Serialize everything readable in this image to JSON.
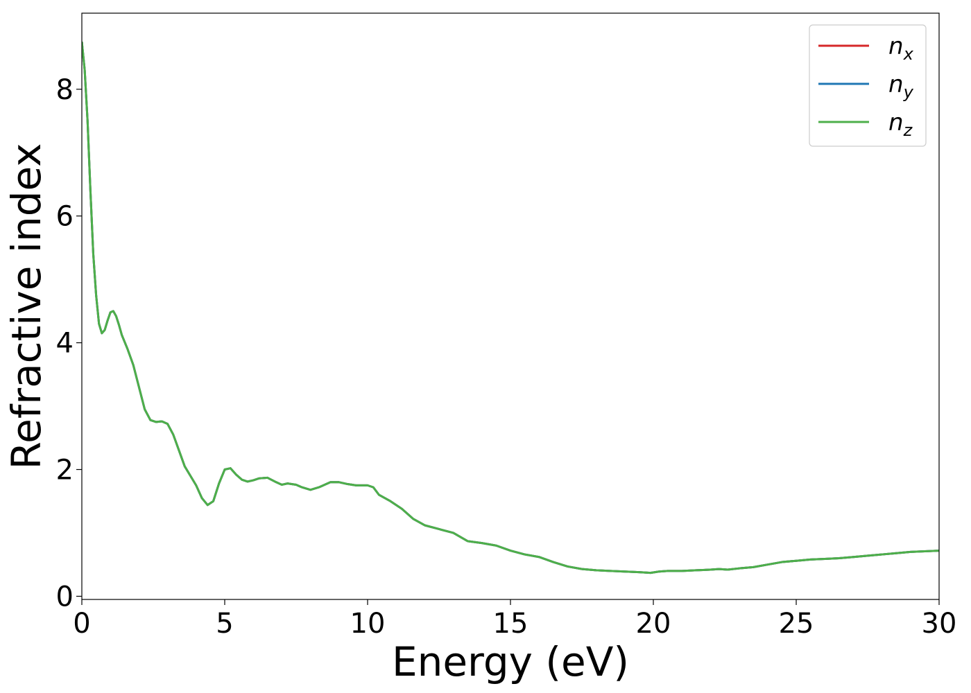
{
  "chart_data": {
    "type": "line",
    "title": "",
    "xlabel": "Energy (eV)",
    "ylabel": "Refractive index",
    "xlim": [
      0,
      30
    ],
    "ylim": [
      -0.05,
      9.2
    ],
    "xticks": [
      "0",
      "5",
      "10",
      "15",
      "20",
      "25",
      "30"
    ],
    "yticks": [
      "0",
      "2",
      "4",
      "6",
      "8"
    ],
    "grid": false,
    "legend_position": "top-right",
    "series": [
      {
        "name": "n_x",
        "label_base": "n",
        "label_sub": "x",
        "color": "#d62728",
        "x": [
          0,
          0.1,
          0.2,
          0.3,
          0.4,
          0.5,
          0.6,
          0.7,
          0.8,
          0.9,
          1.0,
          1.1,
          1.2,
          1.3,
          1.4,
          1.6,
          1.8,
          2.0,
          2.2,
          2.4,
          2.6,
          2.8,
          3.0,
          3.2,
          3.4,
          3.6,
          3.8,
          4.0,
          4.2,
          4.4,
          4.6,
          4.8,
          5.0,
          5.2,
          5.4,
          5.6,
          5.8,
          6.0,
          6.2,
          6.5,
          6.8,
          7.0,
          7.2,
          7.5,
          7.7,
          8.0,
          8.3,
          8.7,
          9.0,
          9.3,
          9.6,
          10.0,
          10.2,
          10.4,
          10.8,
          11.2,
          11.6,
          12.0,
          12.5,
          13.0,
          13.5,
          14.0,
          14.5,
          15.0,
          15.5,
          16.0,
          16.5,
          17.0,
          17.5,
          18.0,
          18.5,
          19.0,
          19.5,
          19.9,
          20.2,
          20.5,
          21.0,
          21.5,
          22.0,
          22.3,
          22.6,
          23.0,
          23.5,
          24.0,
          24.5,
          25.0,
          25.5,
          26.0,
          26.5,
          27.0,
          27.5,
          28.0,
          28.5,
          29.0,
          29.5,
          30.0
        ],
        "y": [
          8.75,
          8.3,
          7.5,
          6.4,
          5.4,
          4.75,
          4.3,
          4.15,
          4.2,
          4.35,
          4.48,
          4.5,
          4.42,
          4.28,
          4.12,
          3.9,
          3.65,
          3.3,
          2.95,
          2.78,
          2.75,
          2.76,
          2.72,
          2.55,
          2.3,
          2.05,
          1.9,
          1.75,
          1.55,
          1.44,
          1.5,
          1.78,
          2.0,
          2.02,
          1.92,
          1.84,
          1.81,
          1.83,
          1.86,
          1.87,
          1.8,
          1.76,
          1.78,
          1.76,
          1.72,
          1.68,
          1.72,
          1.8,
          1.8,
          1.77,
          1.75,
          1.75,
          1.72,
          1.6,
          1.5,
          1.38,
          1.22,
          1.12,
          1.06,
          1.0,
          0.87,
          0.84,
          0.8,
          0.72,
          0.66,
          0.62,
          0.54,
          0.47,
          0.43,
          0.41,
          0.4,
          0.39,
          0.38,
          0.37,
          0.39,
          0.4,
          0.4,
          0.41,
          0.42,
          0.43,
          0.42,
          0.44,
          0.46,
          0.5,
          0.54,
          0.56,
          0.58,
          0.59,
          0.6,
          0.62,
          0.64,
          0.66,
          0.68,
          0.7,
          0.71,
          0.72
        ]
      },
      {
        "name": "n_y",
        "label_base": "n",
        "label_sub": "y",
        "color": "#1f77b4",
        "x": [
          0,
          0.1,
          0.2,
          0.3,
          0.4,
          0.5,
          0.6,
          0.7,
          0.8,
          0.9,
          1.0,
          1.1,
          1.2,
          1.3,
          1.4,
          1.6,
          1.8,
          2.0,
          2.2,
          2.4,
          2.6,
          2.8,
          3.0,
          3.2,
          3.4,
          3.6,
          3.8,
          4.0,
          4.2,
          4.4,
          4.6,
          4.8,
          5.0,
          5.2,
          5.4,
          5.6,
          5.8,
          6.0,
          6.2,
          6.5,
          6.8,
          7.0,
          7.2,
          7.5,
          7.7,
          8.0,
          8.3,
          8.7,
          9.0,
          9.3,
          9.6,
          10.0,
          10.2,
          10.4,
          10.8,
          11.2,
          11.6,
          12.0,
          12.5,
          13.0,
          13.5,
          14.0,
          14.5,
          15.0,
          15.5,
          16.0,
          16.5,
          17.0,
          17.5,
          18.0,
          18.5,
          19.0,
          19.5,
          19.9,
          20.2,
          20.5,
          21.0,
          21.5,
          22.0,
          22.3,
          22.6,
          23.0,
          23.5,
          24.0,
          24.5,
          25.0,
          25.5,
          26.0,
          26.5,
          27.0,
          27.5,
          28.0,
          28.5,
          29.0,
          29.5,
          30.0
        ],
        "y": [
          8.75,
          8.3,
          7.5,
          6.4,
          5.4,
          4.75,
          4.3,
          4.15,
          4.2,
          4.35,
          4.48,
          4.5,
          4.42,
          4.28,
          4.12,
          3.9,
          3.65,
          3.3,
          2.95,
          2.78,
          2.75,
          2.76,
          2.72,
          2.55,
          2.3,
          2.05,
          1.9,
          1.75,
          1.55,
          1.44,
          1.5,
          1.78,
          2.0,
          2.02,
          1.92,
          1.84,
          1.81,
          1.83,
          1.86,
          1.87,
          1.8,
          1.76,
          1.78,
          1.76,
          1.72,
          1.68,
          1.72,
          1.8,
          1.8,
          1.77,
          1.75,
          1.75,
          1.72,
          1.6,
          1.5,
          1.38,
          1.22,
          1.12,
          1.06,
          1.0,
          0.87,
          0.84,
          0.8,
          0.72,
          0.66,
          0.62,
          0.54,
          0.47,
          0.43,
          0.41,
          0.4,
          0.39,
          0.38,
          0.37,
          0.39,
          0.4,
          0.4,
          0.41,
          0.42,
          0.43,
          0.42,
          0.44,
          0.46,
          0.5,
          0.54,
          0.56,
          0.58,
          0.59,
          0.6,
          0.62,
          0.64,
          0.66,
          0.68,
          0.7,
          0.71,
          0.72
        ]
      },
      {
        "name": "n_z",
        "label_base": "n",
        "label_sub": "z",
        "color": "#4daf4a",
        "x": [
          0,
          0.1,
          0.2,
          0.3,
          0.4,
          0.5,
          0.6,
          0.7,
          0.8,
          0.9,
          1.0,
          1.1,
          1.2,
          1.3,
          1.4,
          1.6,
          1.8,
          2.0,
          2.2,
          2.4,
          2.6,
          2.8,
          3.0,
          3.2,
          3.4,
          3.6,
          3.8,
          4.0,
          4.2,
          4.4,
          4.6,
          4.8,
          5.0,
          5.2,
          5.4,
          5.6,
          5.8,
          6.0,
          6.2,
          6.5,
          6.8,
          7.0,
          7.2,
          7.5,
          7.7,
          8.0,
          8.3,
          8.7,
          9.0,
          9.3,
          9.6,
          10.0,
          10.2,
          10.4,
          10.8,
          11.2,
          11.6,
          12.0,
          12.5,
          13.0,
          13.5,
          14.0,
          14.5,
          15.0,
          15.5,
          16.0,
          16.5,
          17.0,
          17.5,
          18.0,
          18.5,
          19.0,
          19.5,
          19.9,
          20.2,
          20.5,
          21.0,
          21.5,
          22.0,
          22.3,
          22.6,
          23.0,
          23.5,
          24.0,
          24.5,
          25.0,
          25.5,
          26.0,
          26.5,
          27.0,
          27.5,
          28.0,
          28.5,
          29.0,
          29.5,
          30.0
        ],
        "y": [
          8.75,
          8.3,
          7.5,
          6.4,
          5.4,
          4.75,
          4.3,
          4.15,
          4.2,
          4.35,
          4.48,
          4.5,
          4.42,
          4.28,
          4.12,
          3.9,
          3.65,
          3.3,
          2.95,
          2.78,
          2.75,
          2.76,
          2.72,
          2.55,
          2.3,
          2.05,
          1.9,
          1.75,
          1.55,
          1.44,
          1.5,
          1.78,
          2.0,
          2.02,
          1.92,
          1.84,
          1.81,
          1.83,
          1.86,
          1.87,
          1.8,
          1.76,
          1.78,
          1.76,
          1.72,
          1.68,
          1.72,
          1.8,
          1.8,
          1.77,
          1.75,
          1.75,
          1.72,
          1.6,
          1.5,
          1.38,
          1.22,
          1.12,
          1.06,
          1.0,
          0.87,
          0.84,
          0.8,
          0.72,
          0.66,
          0.62,
          0.54,
          0.47,
          0.43,
          0.41,
          0.4,
          0.39,
          0.38,
          0.37,
          0.39,
          0.4,
          0.4,
          0.41,
          0.42,
          0.43,
          0.42,
          0.44,
          0.46,
          0.5,
          0.54,
          0.56,
          0.58,
          0.59,
          0.6,
          0.62,
          0.64,
          0.66,
          0.68,
          0.7,
          0.71,
          0.72
        ]
      }
    ]
  }
}
